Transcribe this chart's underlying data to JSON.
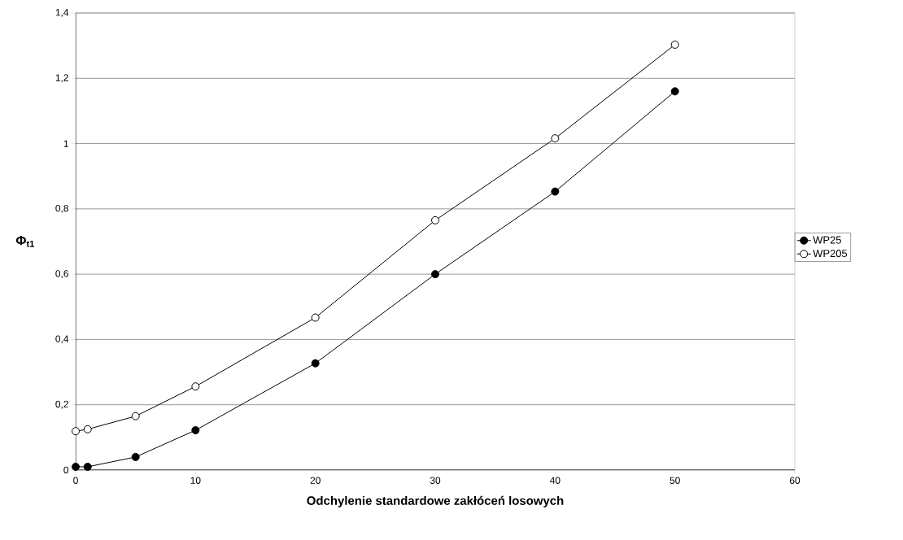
{
  "chart_data": {
    "type": "line",
    "xlabel": "Odchylenie standardowe zakłóceń losowych",
    "ylabel": "**Φ$_{t1}$**",
    "x": [
      0,
      1,
      5,
      10,
      20,
      30,
      40,
      50
    ],
    "series": [
      {
        "name": "WP25",
        "color": "#000000",
        "values": [
          0.01,
          0.01,
          0.04,
          0.122,
          0.327,
          0.6,
          0.853,
          1.16
        ]
      },
      {
        "name": "WP205",
        "color": "#ffffff",
        "values": [
          0.119,
          0.125,
          0.165,
          0.256,
          0.467,
          0.765,
          1.016,
          1.303
        ]
      }
    ],
    "xlim": [
      0,
      60
    ],
    "xticks": [
      0,
      10,
      20,
      30,
      40,
      50,
      60
    ],
    "ylim": [
      0,
      1.4
    ],
    "yticks": [
      0,
      {
        "value": 0.2,
        "label": "0,2"
      },
      {
        "value": 0.4,
        "label": "0,4"
      },
      {
        "value": 0.6,
        "label": "0,6"
      },
      {
        "value": 0.8,
        "label": "0,8"
      },
      1,
      {
        "value": 1.2,
        "label": "1,2"
      },
      {
        "value": 1.4,
        "label": "1,4"
      }
    ],
    "grid": "y",
    "legend": "right",
    "marker": "circle",
    "line_style": "solid"
  }
}
